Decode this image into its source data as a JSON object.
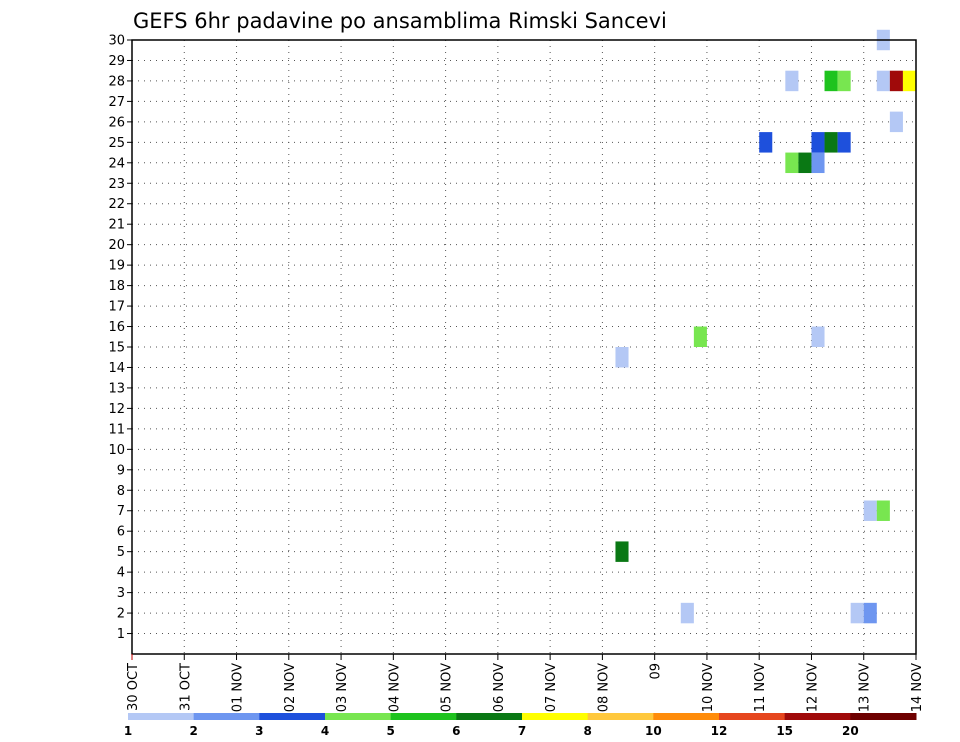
{
  "chart_data": {
    "type": "heatmap",
    "title": "GEFS 6hr padavine po ansamblima Rimski Sancevi",
    "xlabel": "",
    "ylabel": "",
    "grid": true,
    "x_ticks": [
      "30 OCT",
      "31 OCT",
      "01 NOV",
      "02 NOV",
      "03 NOV",
      "04 NOV",
      "05 NOV",
      "06 NOV",
      "07 NOV",
      "08 NOV",
      "09",
      "10 NOV",
      "11 NOV",
      "12 NOV",
      "13 NOV",
      "14 NOV"
    ],
    "y_ticks": [
      1,
      2,
      3,
      4,
      5,
      6,
      7,
      8,
      9,
      10,
      11,
      12,
      13,
      14,
      15,
      16,
      17,
      18,
      19,
      20,
      21,
      22,
      23,
      24,
      25,
      26,
      27,
      28,
      29,
      30
    ],
    "xlim_days": [
      0,
      15
    ],
    "ylim": [
      0,
      30
    ],
    "legend": {
      "placement": "bottom",
      "labels": [
        "1",
        "2",
        "3",
        "4",
        "5",
        "6",
        "7",
        "8",
        "10",
        "12",
        "15",
        "20"
      ],
      "colors": [
        "#b4c8f5",
        "#6e96f0",
        "#1e50dc",
        "#78e650",
        "#1ec31e",
        "#0a7814",
        "#ffff00",
        "#ffc83c",
        "#ff8c0a",
        "#e6461e",
        "#a00a0a",
        "#6e0000"
      ]
    },
    "cells": [
      {
        "day": 14.25,
        "member": 30,
        "color": "#b4c8f5"
      },
      {
        "day": 12.5,
        "member": 28,
        "color": "#b4c8f5"
      },
      {
        "day": 13.25,
        "member": 28,
        "color": "#1ec31e"
      },
      {
        "day": 13.5,
        "member": 28,
        "color": "#78e650"
      },
      {
        "day": 14.25,
        "member": 28,
        "color": "#b4c8f5"
      },
      {
        "day": 14.5,
        "member": 28,
        "color": "#a00a0a"
      },
      {
        "day": 14.75,
        "member": 28,
        "color": "#ffff00"
      },
      {
        "day": 14.5,
        "member": 26,
        "color": "#b4c8f5"
      },
      {
        "day": 12.0,
        "member": 25,
        "color": "#1e50dc"
      },
      {
        "day": 13.0,
        "member": 25,
        "color": "#1e50dc"
      },
      {
        "day": 13.25,
        "member": 25,
        "color": "#0a7814"
      },
      {
        "day": 13.5,
        "member": 25,
        "color": "#1e50dc"
      },
      {
        "day": 12.5,
        "member": 24,
        "color": "#78e650"
      },
      {
        "day": 12.75,
        "member": 24,
        "color": "#0a7814"
      },
      {
        "day": 13.0,
        "member": 24,
        "color": "#6e96f0"
      },
      {
        "day": 10.75,
        "member": 15.5,
        "color": "#78e650"
      },
      {
        "day": 13.0,
        "member": 15.5,
        "color": "#b4c8f5"
      },
      {
        "day": 9.25,
        "member": 14.5,
        "color": "#b4c8f5"
      },
      {
        "day": 14.0,
        "member": 7,
        "color": "#b4c8f5"
      },
      {
        "day": 14.25,
        "member": 7,
        "color": "#78e650"
      },
      {
        "day": 9.25,
        "member": 5,
        "color": "#0a7814"
      },
      {
        "day": 10.5,
        "member": 2,
        "color": "#b4c8f5"
      },
      {
        "day": 13.75,
        "member": 2,
        "color": "#b4c8f5"
      },
      {
        "day": 14.0,
        "member": 2,
        "color": "#6e96f0"
      }
    ]
  }
}
